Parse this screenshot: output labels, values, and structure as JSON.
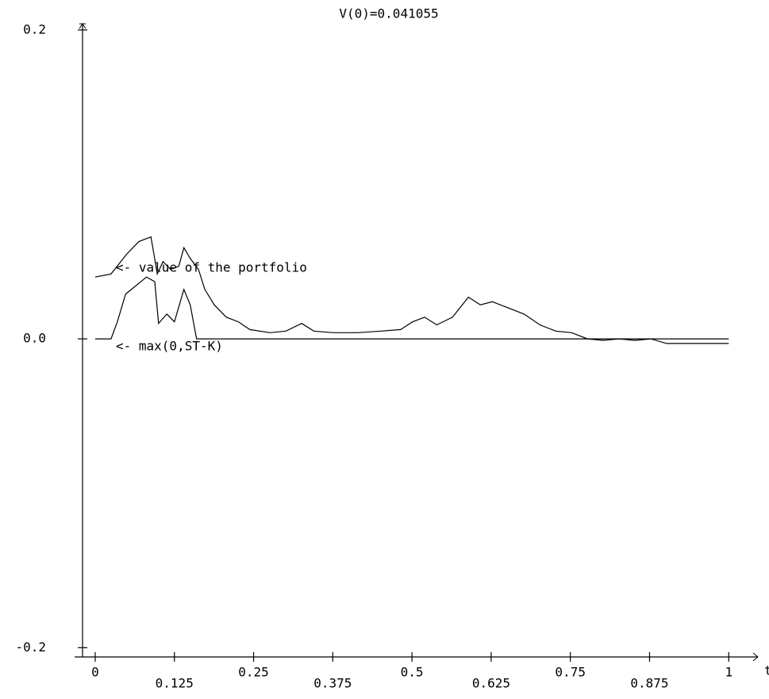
{
  "chart_data": {
    "type": "line",
    "title": "V(0)=0.041055",
    "x_label": "t",
    "annotations": [
      "<- value of the portfolio",
      "<- max(0,ST-K)"
    ],
    "series": [
      {
        "name": "value of the portfolio",
        "color": "#000000",
        "x": [
          0,
          0.025,
          0.05,
          0.069,
          0.088,
          0.098,
          0.107,
          0.119,
          0.132,
          0.14,
          0.15,
          0.163,
          0.173,
          0.188,
          0.207,
          0.226,
          0.244,
          0.276,
          0.301,
          0.326,
          0.345,
          0.376,
          0.414,
          0.451,
          0.482,
          0.501,
          0.52,
          0.539,
          0.564,
          0.589,
          0.608,
          0.627,
          0.652,
          0.677,
          0.702,
          0.727,
          0.752,
          0.777,
          0.802,
          0.827,
          0.852,
          0.877,
          0.902,
          1.0
        ],
        "values": [
          0.04,
          0.042,
          0.055,
          0.063,
          0.066,
          0.042,
          0.05,
          0.045,
          0.047,
          0.059,
          0.052,
          0.045,
          0.032,
          0.022,
          0.014,
          0.011,
          0.006,
          0.004,
          0.005,
          0.01,
          0.005,
          0.004,
          0.004,
          0.005,
          0.006,
          0.011,
          0.014,
          0.009,
          0.014,
          0.027,
          0.022,
          0.024,
          0.02,
          0.016,
          0.009,
          0.005,
          0.004,
          0.0,
          -0.001,
          0.0,
          -0.001,
          0.0,
          -0.003,
          -0.003
        ]
      },
      {
        "name": "max(0,ST-K)",
        "color": "#000000",
        "x": [
          0,
          0.025,
          0.035,
          0.048,
          0.063,
          0.081,
          0.094,
          0.1,
          0.113,
          0.125,
          0.14,
          0.15,
          0.16,
          1.0
        ],
        "values": [
          0,
          0,
          0.011,
          0.029,
          0.034,
          0.04,
          0.037,
          0.01,
          0.016,
          0.011,
          0.032,
          0.022,
          0,
          0
        ]
      }
    ],
    "xlim": [
      -0.02,
      1.046
    ],
    "ylim": [
      -0.206,
      0.204
    ],
    "xticks": [
      0,
      0.125,
      0.25,
      0.375,
      0.5,
      0.625,
      0.75,
      0.875,
      1
    ],
    "yticks": [
      0.2,
      {
        "value": 0,
        "label": "0.0"
      },
      -0.2
    ],
    "grid": false
  }
}
